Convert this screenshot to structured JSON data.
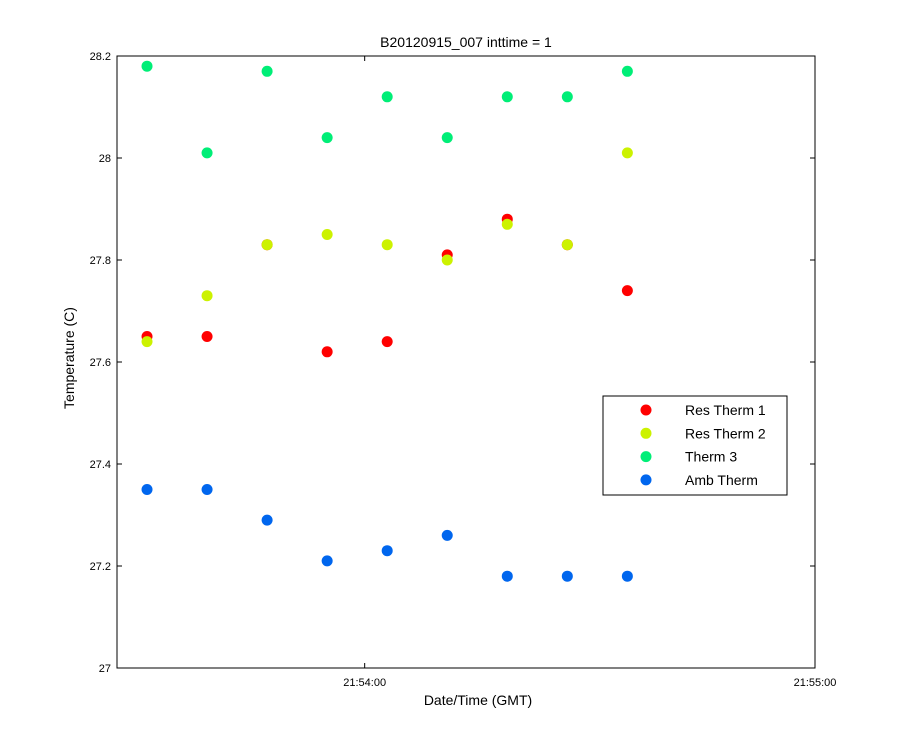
{
  "chart_data": {
    "type": "scatter",
    "title": "B20120915_007 inttime = 1",
    "xlabel": "Date/Time (GMT)",
    "ylabel": "Temperature (C)",
    "xlim": [
      "21:53:27",
      "21:55:00"
    ],
    "ylim": [
      27,
      28.2
    ],
    "x_ticks": [
      "21:54:00",
      "21:55:00"
    ],
    "y_ticks": [
      "27",
      "27.2",
      "27.4",
      "27.6",
      "27.8",
      "28",
      "28.2"
    ],
    "x": [
      "21:53:31",
      "21:53:39",
      "21:53:47",
      "21:53:55",
      "21:54:03",
      "21:54:11",
      "21:54:19",
      "21:54:27",
      "21:54:35"
    ],
    "series": [
      {
        "name": "Res Therm 1",
        "color": "#ff0000",
        "values": [
          27.65,
          27.65,
          27.83,
          27.62,
          27.64,
          27.81,
          27.88,
          27.83,
          27.74
        ]
      },
      {
        "name": "Res Therm 2",
        "color": "#ccf200",
        "values": [
          27.64,
          27.73,
          27.83,
          27.85,
          27.83,
          27.8,
          27.87,
          27.83,
          28.01
        ]
      },
      {
        "name": "Therm 3",
        "color": "#00ee77",
        "values": [
          28.18,
          28.01,
          28.17,
          28.04,
          28.12,
          28.04,
          28.12,
          28.12,
          28.17
        ]
      },
      {
        "name": "Amb Therm",
        "color": "#0066ee",
        "values": [
          27.35,
          27.35,
          27.29,
          27.21,
          27.23,
          27.26,
          27.18,
          27.18,
          27.18
        ]
      }
    ],
    "legend_position": "right",
    "grid": false
  }
}
